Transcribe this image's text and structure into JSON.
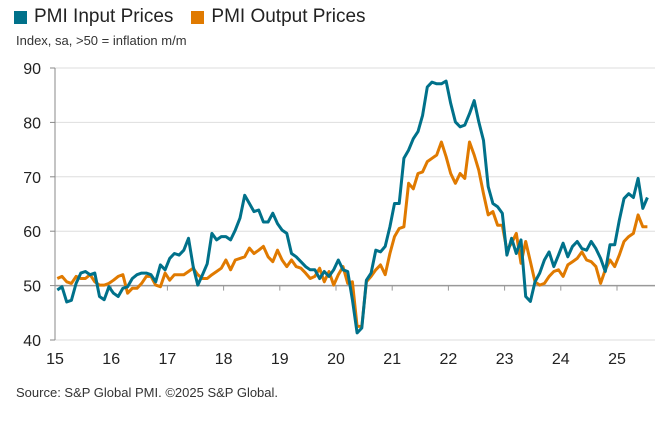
{
  "chart_data": {
    "type": "line",
    "title": "",
    "subtitle": "Index, sa, >50 = inflation m/m",
    "source": "Source: S&P Global PMI. ©2025 S&P Global.",
    "xlabel": "",
    "ylabel": "",
    "ylim": [
      40,
      90
    ],
    "yticks": [
      "40",
      "50",
      "60",
      "70",
      "80",
      "90"
    ],
    "xticks": [
      "15",
      "16",
      "17",
      "18",
      "19",
      "20",
      "21",
      "22",
      "23",
      "24",
      "25"
    ],
    "x_start": "2015-01",
    "frequency": "monthly",
    "grid": true,
    "legend_position": "top-left",
    "series": [
      {
        "name": "PMI Input Prices",
        "color": "#00718a",
        "values": [
          49.2,
          49.8,
          47,
          47.3,
          50.4,
          52.3,
          52.6,
          52,
          52.3,
          48,
          47.4,
          49.8,
          48.6,
          48,
          49.5,
          49.8,
          51.3,
          52,
          52.3,
          52.3,
          52,
          50.7,
          53.8,
          52.9,
          55,
          55.9,
          55.6,
          56.5,
          58.7,
          53.5,
          50.1,
          52,
          54,
          59.6,
          58.4,
          59,
          59,
          58.4,
          60.2,
          62.4,
          66.6,
          65.1,
          63.6,
          63.9,
          61.7,
          61.7,
          63.3,
          61.4,
          60.2,
          59.6,
          55.9,
          55.3,
          54.4,
          53.5,
          52.9,
          52.9,
          51.3,
          52.6,
          51.7,
          52.9,
          54.7,
          52.9,
          52.6,
          47.4,
          41.3,
          42.2,
          51,
          52.3,
          56.5,
          56.2,
          57.2,
          60.8,
          65.1,
          65.1,
          73.4,
          74.9,
          77,
          78.3,
          81.3,
          86.5,
          87.4,
          87.1,
          87.1,
          87.6,
          83.5,
          80.1,
          79.2,
          79.5,
          81.6,
          84,
          80.1,
          76.7,
          68.2,
          65.1,
          64.5,
          63.3,
          55.6,
          58.7,
          55.9,
          58.4,
          48,
          47.1,
          50.7,
          52.3,
          54.7,
          56.2,
          53.5,
          55.6,
          57.8,
          55.3,
          57.2,
          58.1,
          56.8,
          56.5,
          58.1,
          56.8,
          55,
          52.6,
          57.5,
          57.5,
          62,
          66,
          66.9,
          66.2,
          69.7,
          64.2,
          66.2
        ]
      },
      {
        "name": "PMI Output Prices",
        "color": "#e07a00",
        "values": [
          51.3,
          51.7,
          50.7,
          50.4,
          51.7,
          51.3,
          51.3,
          52,
          50.7,
          50.1,
          50.1,
          50.4,
          51,
          51.7,
          52,
          48.6,
          49.5,
          49.5,
          50.4,
          51.7,
          51.7,
          50.1,
          49.8,
          52.3,
          51,
          52,
          52,
          52,
          52.6,
          53.2,
          52,
          51.3,
          51.3,
          52,
          52.6,
          53.2,
          54.7,
          52.9,
          54.7,
          55,
          55.3,
          56.9,
          55.9,
          56.5,
          57.2,
          55.3,
          54.4,
          56.5,
          54.7,
          53.5,
          54.7,
          53.5,
          53.2,
          52.3,
          51.3,
          51.7,
          53.2,
          50.7,
          52.6,
          50.1,
          52,
          53.5,
          50.4,
          50.7,
          42.5,
          42.5,
          50.7,
          51.7,
          52.9,
          53.8,
          52,
          55.9,
          59,
          60.5,
          60.8,
          68.8,
          67.8,
          70.6,
          70.9,
          72.8,
          73.4,
          74,
          76.4,
          73.7,
          70.6,
          68.8,
          70.6,
          69.7,
          76.4,
          74,
          71.2,
          66.9,
          63,
          63.6,
          61.1,
          61.1,
          56.5,
          57.8,
          59.6,
          54.1,
          58.1,
          54.4,
          50.7,
          50.1,
          50.4,
          51.7,
          52.6,
          52.9,
          51.7,
          53.8,
          54.4,
          55,
          56.2,
          54.7,
          54.4,
          53.5,
          50.4,
          52.9,
          54.7,
          53.5,
          55.6,
          58.1,
          59,
          59.6,
          63,
          60.8,
          60.8
        ]
      }
    ]
  }
}
